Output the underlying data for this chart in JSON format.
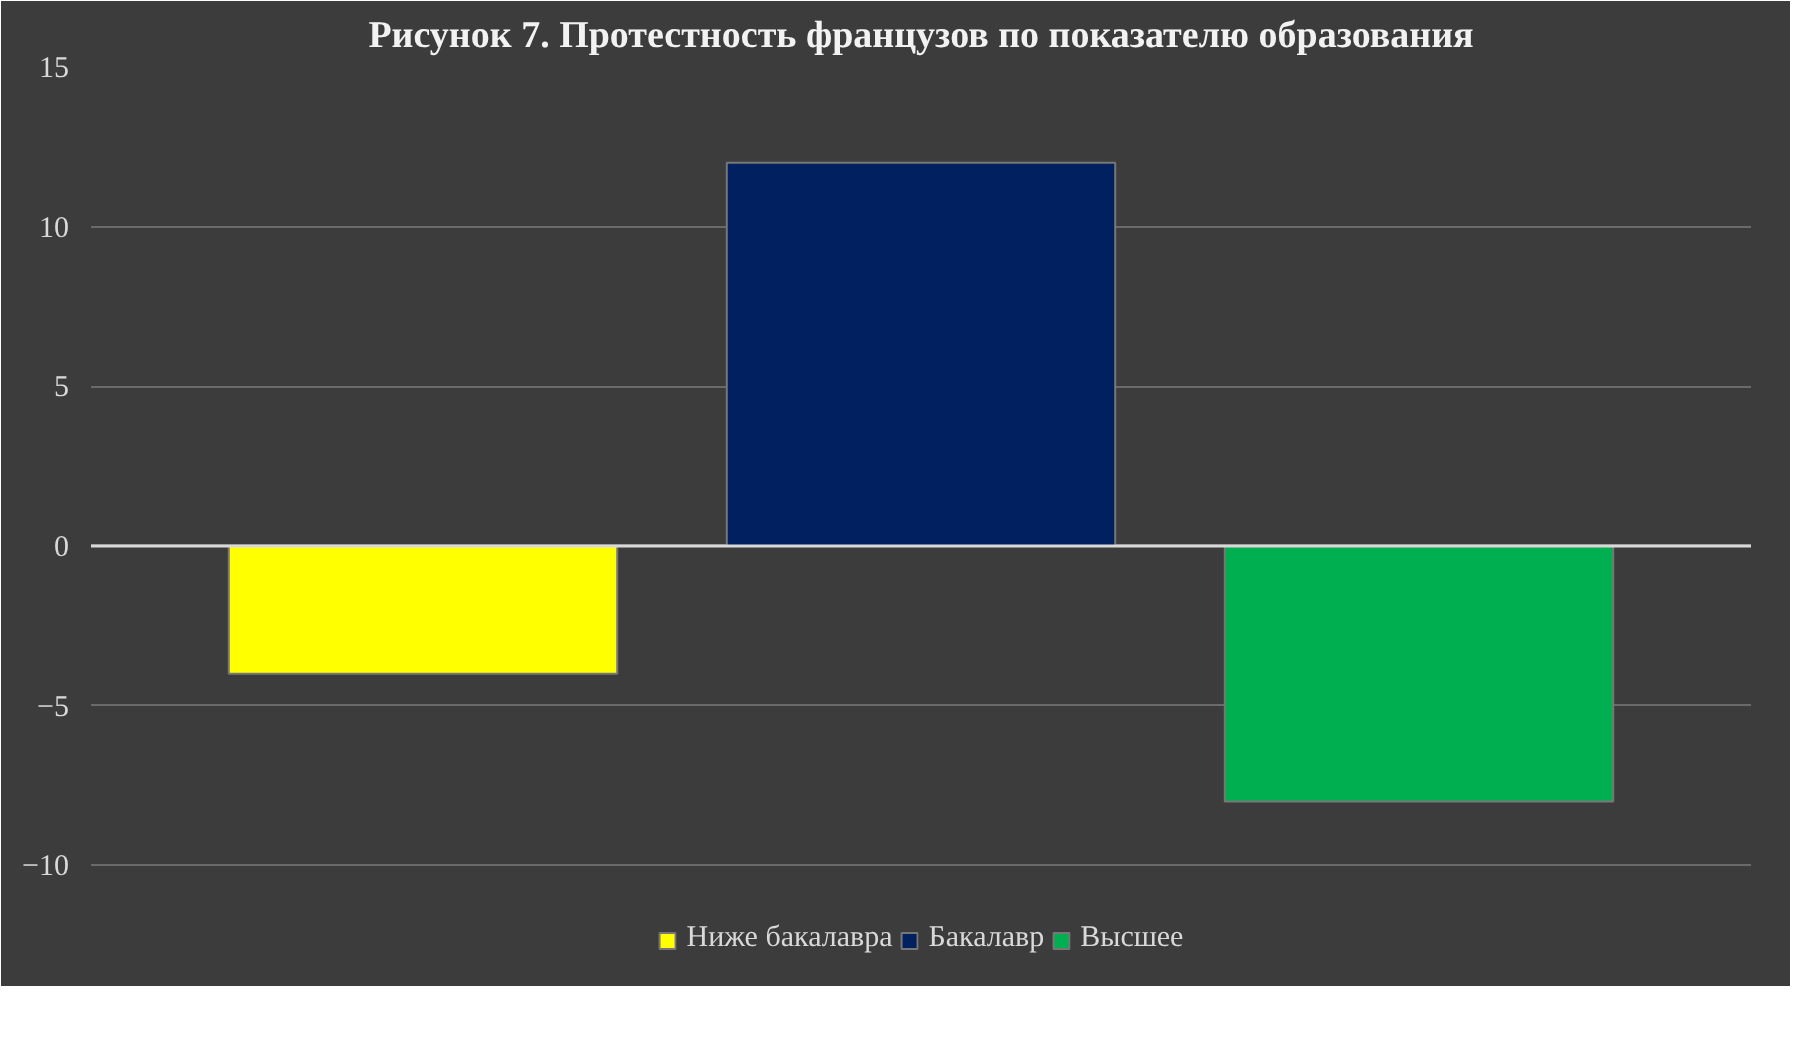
{
  "chart_data": {
    "type": "bar",
    "title": "Рисунок 7. Протестность французов по показателю образования",
    "categories": [
      null
    ],
    "series": [
      {
        "name": "Ниже бакалавра",
        "color": "#ffff00",
        "values": [
          -4
        ]
      },
      {
        "name": "Бакалавр",
        "color": "#002060",
        "values": [
          12
        ]
      },
      {
        "name": "Высшее",
        "color": "#00b050",
        "values": [
          -8
        ]
      }
    ],
    "ylim": [
      -13.5,
      15
    ],
    "yticks": [
      -10,
      -5,
      0,
      5,
      10,
      15
    ],
    "grid": "y",
    "legend": "bottom"
  }
}
